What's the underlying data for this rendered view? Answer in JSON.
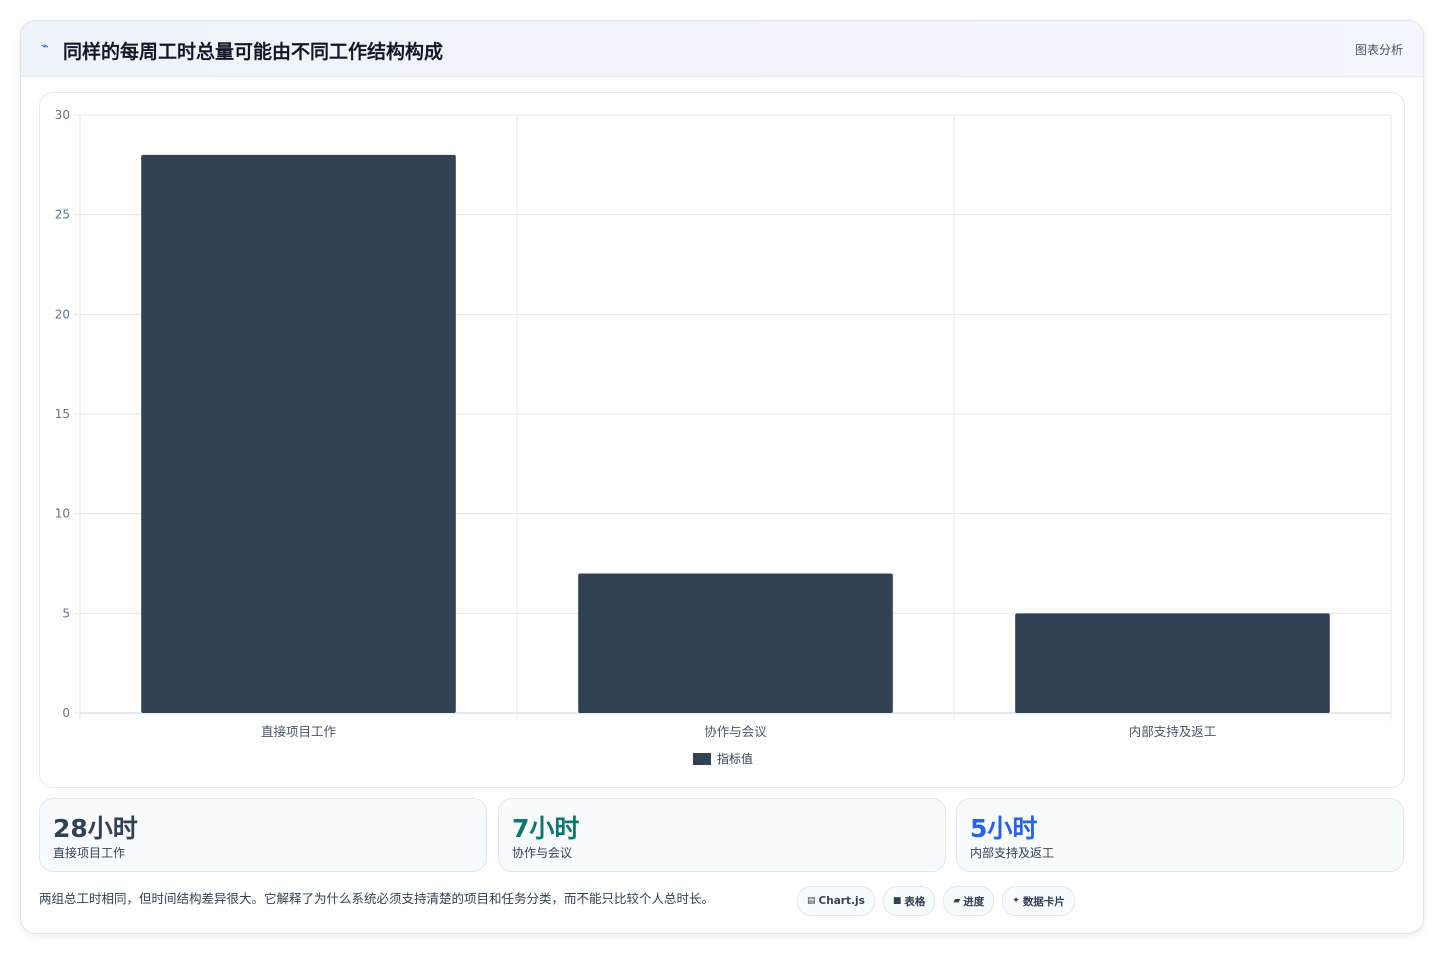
{
  "header": {
    "icon": "trend-line-icon",
    "title": "同样的每周工时总量可能由不同工作结构构成",
    "right_label": "图表分析"
  },
  "chart_data": {
    "type": "bar",
    "categories": [
      "直接项目工作",
      "协作与会议",
      "内部支持及返工"
    ],
    "series": [
      {
        "name": "指标值",
        "values": [
          28,
          7,
          5
        ],
        "color": "#334155"
      }
    ],
    "yticks": [
      "0",
      "5",
      "10",
      "15",
      "20",
      "25",
      "30"
    ],
    "ylim": [
      0,
      30
    ],
    "grid": true,
    "legend": "bottom-center",
    "title": "",
    "xlabel": "",
    "ylabel": ""
  },
  "stats": [
    {
      "value": "28小时",
      "label": "直接项目工作",
      "color": "#334155"
    },
    {
      "value": "7小时",
      "label": "协作与会议",
      "color": "#0f766e"
    },
    {
      "value": "5小时",
      "label": "内部支持及返工",
      "color": "#2563eb"
    }
  ],
  "footer": {
    "text": "两组总工时相同，但时间结构差异很大。它解释了为什么系统必须支持清楚的项目和任务分类，而不能只比较个人总时长。"
  },
  "tags": [
    {
      "icon": "chart-icon",
      "glyph": "▤",
      "label": "Chart.js"
    },
    {
      "icon": "table-icon",
      "glyph": "■",
      "label": "表格"
    },
    {
      "icon": "progress-icon",
      "glyph": "▰",
      "label": "进度"
    },
    {
      "icon": "data-card-icon",
      "glyph": "✦",
      "label": "数据卡片"
    }
  ]
}
